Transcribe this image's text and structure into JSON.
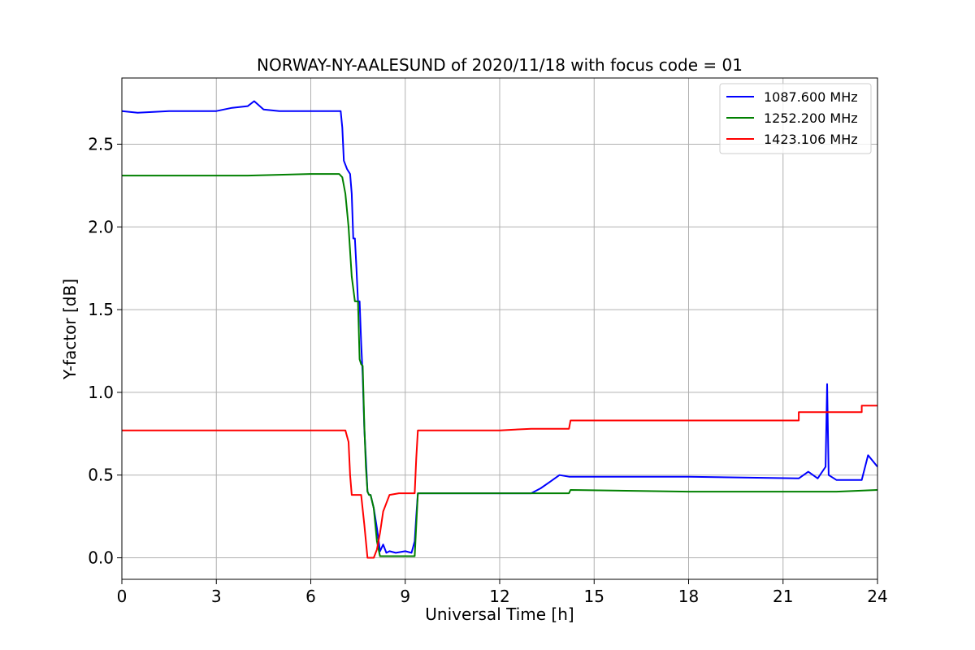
{
  "chart_data": {
    "type": "line",
    "title": "NORWAY-NY-AALESUND of 2020/11/18 with focus code = 01",
    "xlabel": "Universal Time [h]",
    "ylabel": "Y-factor [dB]",
    "xlim": [
      0,
      24
    ],
    "ylim": [
      -0.13,
      2.9
    ],
    "xticks": [
      0,
      3,
      6,
      9,
      12,
      15,
      18,
      21,
      24
    ],
    "xtick_labels": [
      "0",
      "3",
      "6",
      "9",
      "12",
      "15",
      "18",
      "21",
      "24"
    ],
    "yticks": [
      0.0,
      0.5,
      1.0,
      1.5,
      2.0,
      2.5
    ],
    "ytick_labels": [
      "0.0",
      "0.5",
      "1.0",
      "1.5",
      "2.0",
      "2.5"
    ],
    "grid": true,
    "legend_position": "top-right",
    "series": [
      {
        "name": "1087.600 MHz",
        "color": "#0000ff",
        "x": [
          0,
          0.5,
          1.5,
          3.0,
          3.5,
          4.0,
          4.2,
          4.5,
          5.0,
          6.0,
          6.95,
          7.0,
          7.05,
          7.15,
          7.25,
          7.3,
          7.35,
          7.4,
          7.45,
          7.5,
          7.55,
          7.6,
          7.65,
          7.7,
          7.75,
          7.8,
          7.85,
          7.9,
          8.0,
          8.1,
          8.2,
          8.3,
          8.4,
          8.5,
          8.7,
          9.0,
          9.2,
          9.3,
          9.35,
          9.4,
          12.0,
          13.0,
          13.3,
          13.6,
          13.9,
          14.2,
          14.25,
          18.0,
          21.5,
          21.8,
          22.1,
          22.35,
          22.4,
          22.45,
          22.7,
          23.5,
          23.7,
          24.0
        ],
        "y": [
          2.7,
          2.69,
          2.7,
          2.7,
          2.72,
          2.73,
          2.76,
          2.71,
          2.7,
          2.7,
          2.7,
          2.6,
          2.4,
          2.35,
          2.32,
          2.2,
          1.93,
          1.93,
          1.75,
          1.55,
          1.55,
          1.3,
          1.1,
          0.78,
          0.6,
          0.4,
          0.38,
          0.38,
          0.3,
          0.18,
          0.04,
          0.08,
          0.03,
          0.04,
          0.03,
          0.04,
          0.03,
          0.1,
          0.25,
          0.39,
          0.39,
          0.39,
          0.42,
          0.46,
          0.5,
          0.49,
          0.49,
          0.49,
          0.48,
          0.52,
          0.48,
          0.55,
          1.05,
          0.5,
          0.47,
          0.47,
          0.62,
          0.55
        ]
      },
      {
        "name": "1252.200 MHz",
        "color": "#008000",
        "x": [
          0,
          1.0,
          2.0,
          4.0,
          6.0,
          6.9,
          7.0,
          7.1,
          7.2,
          7.3,
          7.4,
          7.5,
          7.55,
          7.6,
          7.65,
          7.7,
          7.75,
          7.8,
          7.85,
          7.9,
          8.0,
          8.1,
          8.2,
          8.3,
          8.5,
          9.0,
          9.3,
          9.4,
          12.0,
          14.2,
          14.25,
          18.0,
          21.5,
          22.7,
          24.0
        ],
        "y": [
          2.31,
          2.31,
          2.31,
          2.31,
          2.32,
          2.32,
          2.3,
          2.2,
          2.0,
          1.7,
          1.55,
          1.55,
          1.2,
          1.17,
          1.16,
          0.8,
          0.55,
          0.4,
          0.38,
          0.38,
          0.3,
          0.1,
          0.01,
          0.01,
          0.01,
          0.01,
          0.01,
          0.39,
          0.39,
          0.39,
          0.41,
          0.4,
          0.4,
          0.4,
          0.41
        ]
      },
      {
        "name": "1423.106 MHz",
        "color": "#ff0000",
        "x": [
          0,
          3.0,
          6.0,
          7.0,
          7.1,
          7.2,
          7.25,
          7.3,
          7.6,
          7.7,
          7.8,
          7.9,
          8.0,
          8.1,
          8.2,
          8.3,
          8.4,
          8.5,
          8.8,
          9.3,
          9.35,
          9.4,
          12.0,
          13.0,
          14.2,
          14.25,
          18.0,
          21.5,
          21.5,
          22.7,
          23.5,
          23.5,
          24.0
        ],
        "y": [
          0.77,
          0.77,
          0.77,
          0.77,
          0.77,
          0.7,
          0.5,
          0.38,
          0.38,
          0.2,
          0.0,
          0.0,
          0.0,
          0.05,
          0.15,
          0.28,
          0.33,
          0.38,
          0.39,
          0.39,
          0.6,
          0.77,
          0.77,
          0.78,
          0.78,
          0.83,
          0.83,
          0.83,
          0.88,
          0.88,
          0.88,
          0.92,
          0.92
        ]
      }
    ]
  }
}
